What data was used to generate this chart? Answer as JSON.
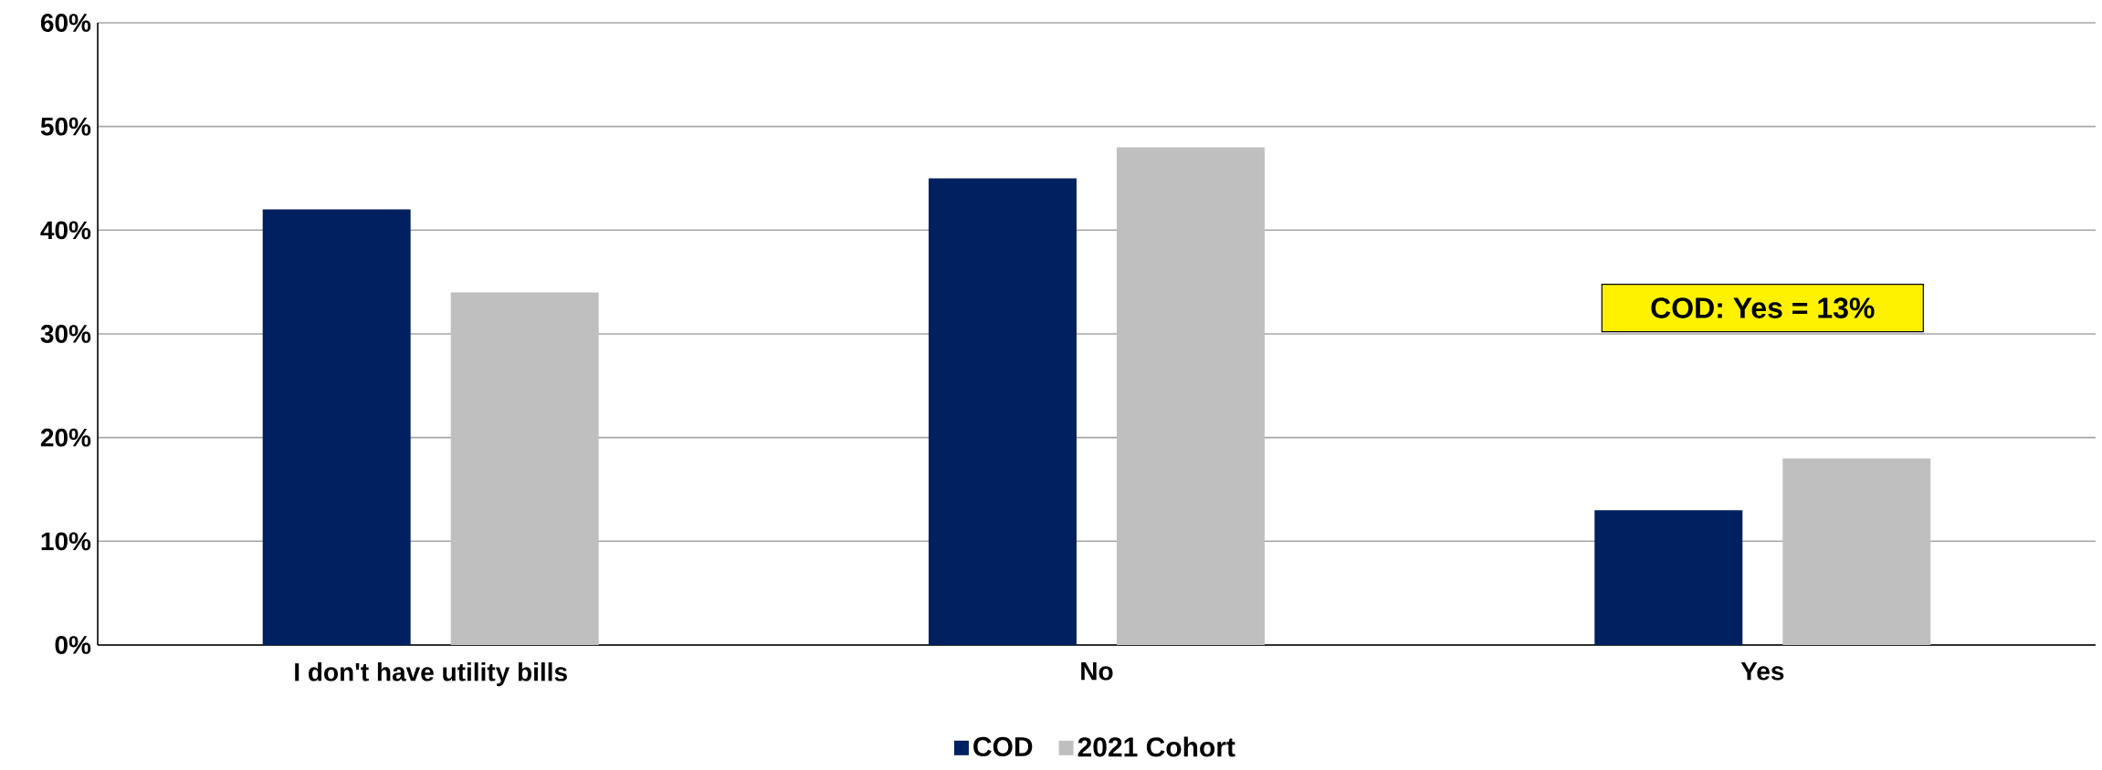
{
  "chart_data": {
    "type": "bar",
    "categories": [
      "I don't have utility bills",
      "No",
      "Yes"
    ],
    "series": [
      {
        "name": "COD",
        "color": "#002060",
        "values": [
          42,
          45,
          13
        ]
      },
      {
        "name": "2021 Cohort",
        "color": "#bfbfbf",
        "values": [
          34,
          48,
          18
        ]
      }
    ],
    "ylim": [
      0,
      60
    ],
    "yticks": [
      {
        "value": 0,
        "label": "0%"
      },
      {
        "value": 10,
        "label": "10%"
      },
      {
        "value": 20,
        "label": "20%"
      },
      {
        "value": 30,
        "label": "30%"
      },
      {
        "value": 40,
        "label": "40%"
      },
      {
        "value": 50,
        "label": "50%"
      },
      {
        "value": 60,
        "label": "60%"
      }
    ],
    "grid": "y",
    "legend": "bottom",
    "annotations": [
      "COD: Yes = 13%"
    ]
  }
}
